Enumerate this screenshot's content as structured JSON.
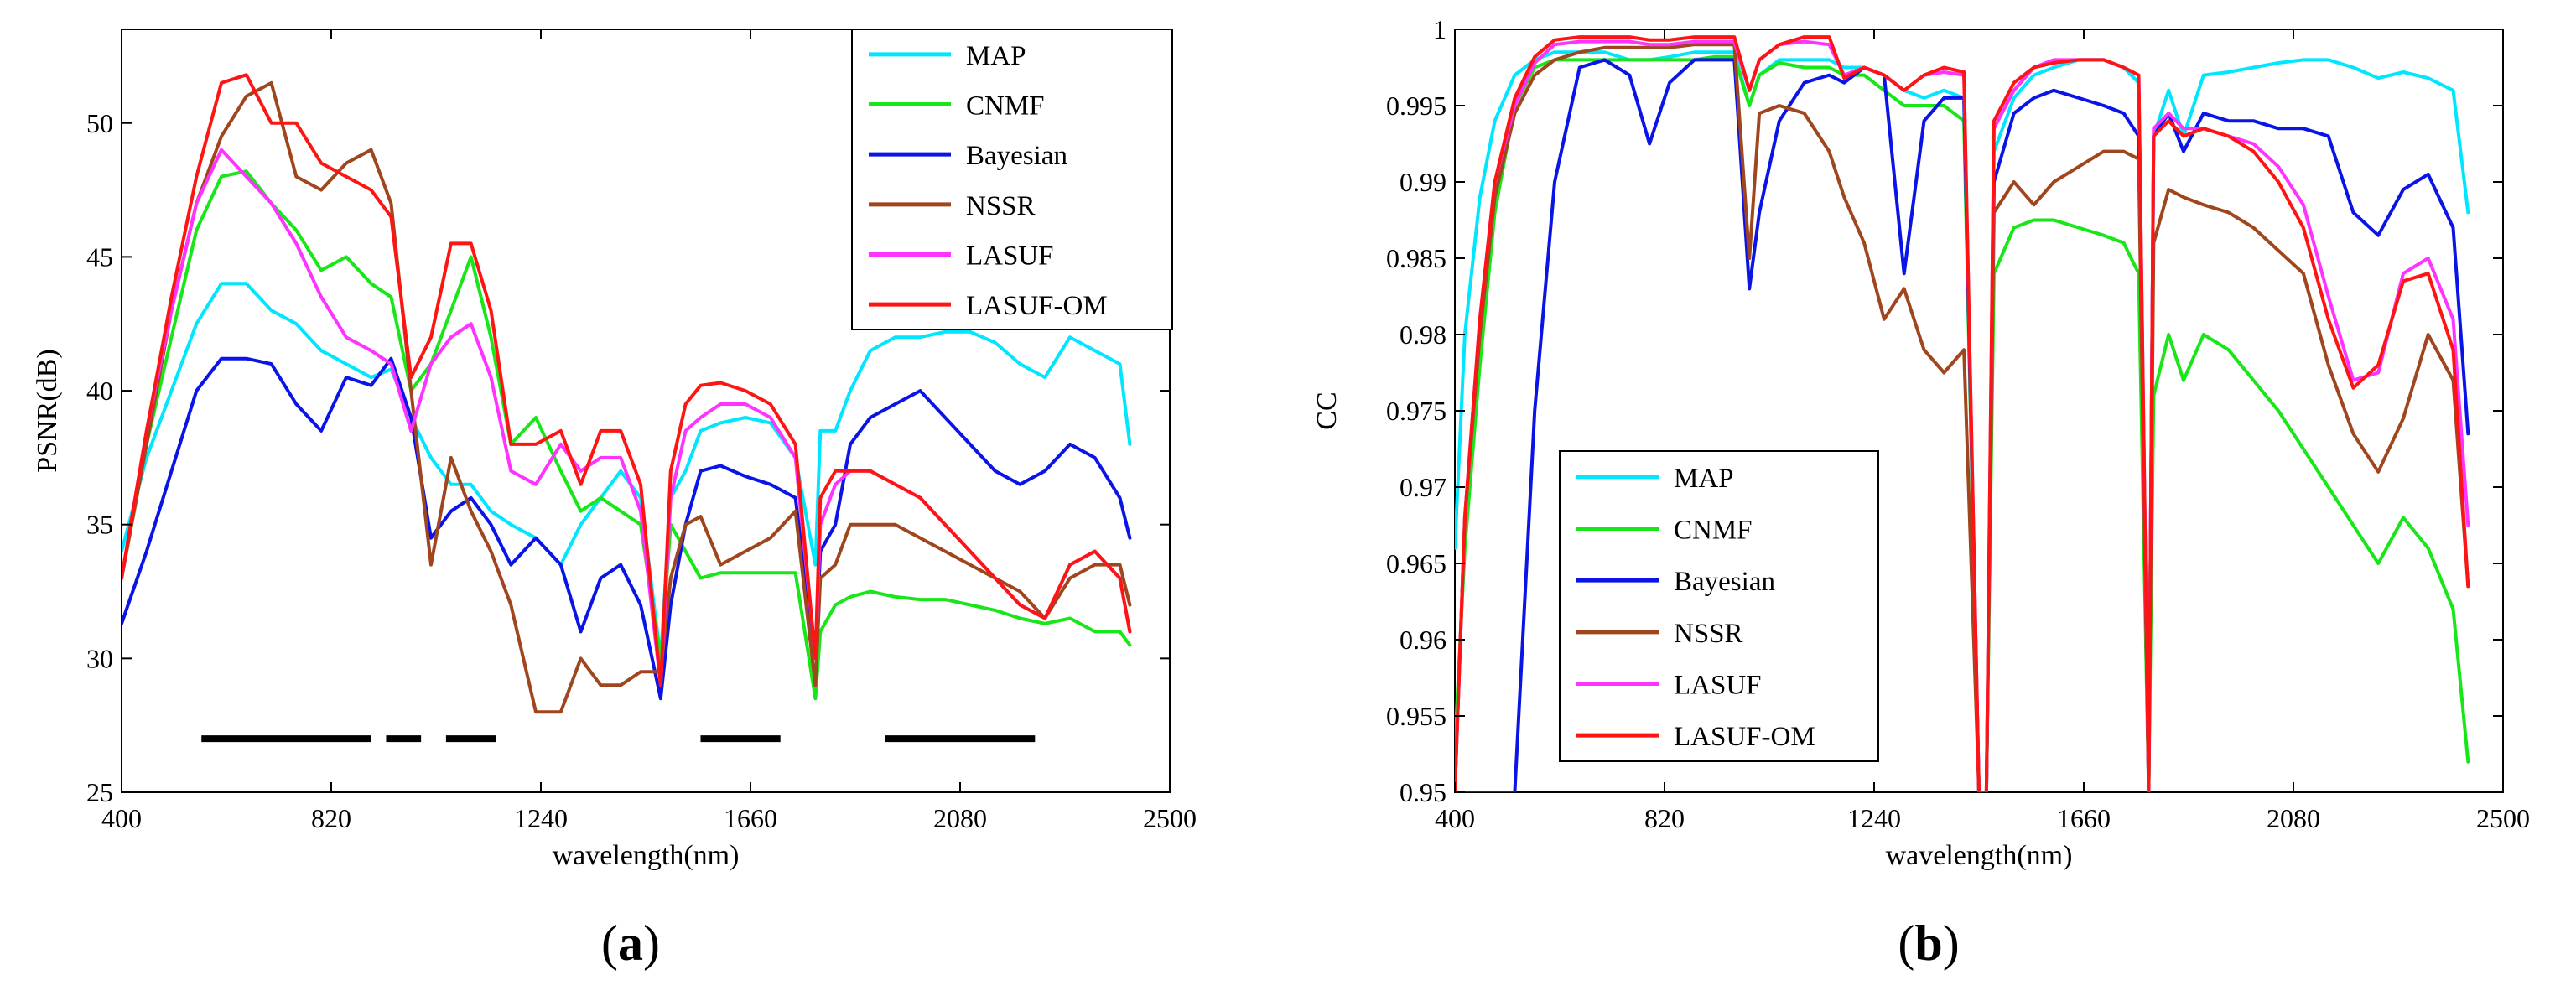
{
  "colors": {
    "MAP": "#00e6ff",
    "CNMF": "#19e619",
    "Bayesian": "#0a14e6",
    "NSSR": "#a0461e",
    "LASUF": "#ff33ff",
    "LASUF-OM": "#ff1414"
  },
  "chart_data": [
    {
      "type": "line",
      "panel": "a",
      "caption_prefix": "(",
      "caption_letter": "a",
      "caption_suffix": ")",
      "xlabel": "wavelength(nm)",
      "ylabel": "PSNR(dB)",
      "xlim": [
        400,
        2500
      ],
      "ylim": [
        25,
        53.5
      ],
      "xticks": [
        400,
        820,
        1240,
        1660,
        2080,
        2500
      ],
      "yticks": [
        25,
        30,
        35,
        40,
        45,
        50
      ],
      "legend": [
        "MAP",
        "CNMF",
        "Bayesian",
        "NSSR",
        "LASUF",
        "LASUF-OM"
      ],
      "legend_position": "top-right",
      "bad_band_segments": [
        [
          560,
          900
        ],
        [
          930,
          1000
        ],
        [
          1050,
          1150
        ],
        [
          1560,
          1720
        ],
        [
          1930,
          2230
        ]
      ],
      "bad_band_level": 27,
      "x": [
        400,
        450,
        500,
        550,
        600,
        650,
        700,
        750,
        800,
        850,
        900,
        940,
        980,
        1020,
        1060,
        1100,
        1140,
        1180,
        1230,
        1280,
        1320,
        1360,
        1400,
        1440,
        1480,
        1500,
        1530,
        1560,
        1600,
        1650,
        1700,
        1750,
        1790,
        1800,
        1830,
        1860,
        1900,
        1950,
        2000,
        2050,
        2100,
        2150,
        2200,
        2250,
        2300,
        2350,
        2400,
        2420
      ],
      "series": [
        {
          "name": "MAP",
          "values": [
            34,
            37.5,
            40,
            42.5,
            44,
            44,
            43,
            42.5,
            41.5,
            41,
            40.5,
            40.8,
            39,
            37.5,
            36.5,
            36.5,
            35.5,
            35,
            34.5,
            33.5,
            35,
            36,
            37,
            36,
            30,
            36,
            37,
            38.5,
            38.8,
            39,
            38.8,
            37.5,
            33.5,
            38.5,
            38.5,
            40,
            41.5,
            42,
            42,
            42.2,
            42.2,
            41.8,
            41,
            40.5,
            42,
            41.5,
            41,
            38
          ]
        },
        {
          "name": "CNMF",
          "values": [
            33,
            38,
            42,
            46,
            48,
            48.2,
            47,
            46,
            44.5,
            45,
            44,
            43.5,
            40,
            41,
            43,
            45,
            42,
            38,
            39,
            37,
            35.5,
            36,
            35.5,
            35,
            30,
            35,
            34,
            33,
            33.2,
            33.2,
            33.2,
            33.2,
            28.5,
            31,
            32,
            32.3,
            32.5,
            32.3,
            32.2,
            32.2,
            32,
            31.8,
            31.5,
            31.3,
            31.5,
            31,
            31,
            30.5
          ]
        },
        {
          "name": "Bayesian",
          "values": [
            31.3,
            34,
            37,
            40,
            41.2,
            41.2,
            41,
            39.5,
            38.5,
            40.5,
            40.2,
            41.2,
            39,
            34.5,
            35.5,
            36,
            35,
            33.5,
            34.5,
            33.5,
            31,
            33,
            33.5,
            32,
            28.5,
            32,
            35,
            37,
            37.2,
            36.8,
            36.5,
            36,
            30,
            34,
            35,
            38,
            39,
            39.5,
            40,
            39,
            38,
            37,
            36.5,
            37,
            38,
            37.5,
            36,
            34.5
          ]
        },
        {
          "name": "NSSR",
          "values": [
            33,
            38,
            43,
            47,
            49.5,
            51,
            51.5,
            48,
            47.5,
            48.5,
            49,
            47,
            40,
            33.5,
            37.5,
            35.5,
            34,
            32,
            28,
            28,
            30,
            29,
            29,
            29.5,
            29.5,
            33,
            35,
            35.3,
            33.5,
            34,
            34.5,
            35.5,
            29,
            33,
            33.5,
            35,
            35,
            35,
            34.5,
            34,
            33.5,
            33,
            32.5,
            31.5,
            33,
            33.5,
            33.5,
            32
          ]
        },
        {
          "name": "LASUF",
          "values": [
            33,
            38.5,
            43,
            47,
            49,
            48,
            47,
            45.5,
            43.5,
            42,
            41.5,
            41,
            38.5,
            41,
            42,
            42.5,
            40.5,
            37,
            36.5,
            38,
            37,
            37.5,
            37.5,
            35.5,
            29,
            36,
            38.5,
            39,
            39.5,
            39.5,
            39,
            37.5,
            30,
            35,
            36.5,
            37,
            37,
            36.5,
            36,
            35,
            34,
            33,
            32,
            31.5,
            33.5,
            34,
            33,
            31
          ]
        },
        {
          "name": "LASUF-OM",
          "values": [
            33,
            38.5,
            43.5,
            48,
            51.5,
            51.8,
            50,
            50,
            48.5,
            48,
            47.5,
            46.5,
            40.5,
            42,
            45.5,
            45.5,
            43,
            38,
            38,
            38.5,
            36.5,
            38.5,
            38.5,
            36.5,
            29,
            37,
            39.5,
            40.2,
            40.3,
            40,
            39.5,
            38,
            30,
            36,
            37,
            37,
            37,
            36.5,
            36,
            35,
            34,
            33,
            32,
            31.5,
            33.5,
            34,
            33,
            31
          ]
        }
      ]
    },
    {
      "type": "line",
      "panel": "b",
      "caption_prefix": "(",
      "caption_letter": "b",
      "caption_suffix": ")",
      "xlabel": "wavelength(nm)",
      "ylabel": "CC",
      "xlim": [
        400,
        2500
      ],
      "ylim": [
        0.95,
        1.0
      ],
      "xticks": [
        400,
        820,
        1240,
        1660,
        2080,
        2500
      ],
      "yticks": [
        0.95,
        0.955,
        0.96,
        0.965,
        0.97,
        0.975,
        0.98,
        0.985,
        0.99,
        0.995,
        1
      ],
      "ytick_labels": [
        "0.95",
        "0.955",
        "0.96",
        "0.965",
        "0.97",
        "0.975",
        "0.98",
        "0.985",
        "0.99",
        "0.995",
        "1"
      ],
      "legend": [
        "MAP",
        "CNMF",
        "Bayesian",
        "NSSR",
        "LASUF",
        "LASUF-OM"
      ],
      "legend_position": "bottom-left",
      "x": [
        400,
        420,
        450,
        480,
        520,
        560,
        600,
        650,
        700,
        750,
        790,
        830,
        880,
        920,
        960,
        990,
        1010,
        1050,
        1100,
        1150,
        1180,
        1220,
        1260,
        1300,
        1340,
        1380,
        1420,
        1450,
        1465,
        1480,
        1520,
        1560,
        1600,
        1650,
        1700,
        1740,
        1770,
        1790,
        1800,
        1830,
        1860,
        1900,
        1950,
        2000,
        2050,
        2100,
        2150,
        2200,
        2250,
        2300,
        2350,
        2400,
        2430
      ],
      "series": [
        {
          "name": "MAP",
          "values": [
            0.966,
            0.98,
            0.989,
            0.994,
            0.997,
            0.998,
            0.9985,
            0.9985,
            0.9985,
            0.998,
            0.998,
            0.9982,
            0.9985,
            0.9985,
            0.9985,
            0.995,
            0.997,
            0.998,
            0.998,
            0.998,
            0.9975,
            0.9975,
            0.997,
            0.996,
            0.9955,
            0.996,
            0.9955,
            0.95,
            0.95,
            0.992,
            0.9955,
            0.997,
            0.9975,
            0.998,
            0.998,
            0.9975,
            0.9965,
            0.95,
            0.993,
            0.996,
            0.993,
            0.997,
            0.9972,
            0.9975,
            0.9978,
            0.998,
            0.998,
            0.9975,
            0.9968,
            0.9972,
            0.9968,
            0.996,
            0.988
          ]
        },
        {
          "name": "CNMF",
          "values": [
            0.953,
            0.966,
            0.978,
            0.988,
            0.995,
            0.9975,
            0.998,
            0.998,
            0.998,
            0.998,
            0.998,
            0.998,
            0.998,
            0.9982,
            0.9982,
            0.995,
            0.997,
            0.9978,
            0.9975,
            0.9975,
            0.997,
            0.997,
            0.996,
            0.995,
            0.995,
            0.995,
            0.994,
            0.95,
            0.95,
            0.984,
            0.987,
            0.9875,
            0.9875,
            0.987,
            0.9865,
            0.986,
            0.984,
            0.95,
            0.976,
            0.98,
            0.977,
            0.98,
            0.979,
            0.977,
            0.975,
            0.9725,
            0.97,
            0.9675,
            0.965,
            0.968,
            0.966,
            0.962,
            0.952
          ]
        },
        {
          "name": "Bayesian",
          "values": [
            0.95,
            0.95,
            0.95,
            0.95,
            0.95,
            0.975,
            0.99,
            0.9975,
            0.998,
            0.997,
            0.9925,
            0.9965,
            0.998,
            0.998,
            0.998,
            0.983,
            0.988,
            0.994,
            0.9965,
            0.997,
            0.9965,
            0.9975,
            0.997,
            0.984,
            0.994,
            0.9955,
            0.9955,
            0.95,
            0.95,
            0.99,
            0.9945,
            0.9955,
            0.996,
            0.9955,
            0.995,
            0.9945,
            0.993,
            0.95,
            0.993,
            0.9945,
            0.992,
            0.9945,
            0.994,
            0.994,
            0.9935,
            0.9935,
            0.993,
            0.988,
            0.9865,
            0.9895,
            0.9905,
            0.987,
            0.9735
          ]
        },
        {
          "name": "NSSR",
          "values": [
            0.95,
            0.968,
            0.98,
            0.989,
            0.9945,
            0.997,
            0.998,
            0.9985,
            0.9988,
            0.9988,
            0.9988,
            0.9988,
            0.999,
            0.999,
            0.999,
            0.985,
            0.9945,
            0.995,
            0.9945,
            0.992,
            0.989,
            0.986,
            0.981,
            0.983,
            0.979,
            0.9775,
            0.979,
            0.95,
            0.95,
            0.988,
            0.99,
            0.9885,
            0.99,
            0.991,
            0.992,
            0.992,
            0.9915,
            0.95,
            0.986,
            0.9895,
            0.989,
            0.9885,
            0.988,
            0.987,
            0.9855,
            0.984,
            0.978,
            0.9735,
            0.971,
            0.9745,
            0.98,
            0.977,
            0.9635
          ]
        },
        {
          "name": "LASUF",
          "values": [
            0.95,
            0.968,
            0.981,
            0.99,
            0.995,
            0.9978,
            0.999,
            0.9992,
            0.9992,
            0.9992,
            0.999,
            0.999,
            0.9992,
            0.9992,
            0.9992,
            0.996,
            0.998,
            0.999,
            0.9992,
            0.999,
            0.997,
            0.9975,
            0.997,
            0.996,
            0.997,
            0.9972,
            0.997,
            0.95,
            0.95,
            0.9935,
            0.996,
            0.9975,
            0.998,
            0.998,
            0.998,
            0.9975,
            0.997,
            0.95,
            0.9935,
            0.9945,
            0.9935,
            0.9935,
            0.993,
            0.9925,
            0.991,
            0.9885,
            0.9825,
            0.977,
            0.9775,
            0.984,
            0.985,
            0.981,
            0.9675
          ]
        },
        {
          "name": "LASUF-OM",
          "values": [
            0.95,
            0.968,
            0.981,
            0.99,
            0.9955,
            0.9982,
            0.9993,
            0.9995,
            0.9995,
            0.9995,
            0.9993,
            0.9993,
            0.9995,
            0.9995,
            0.9995,
            0.996,
            0.998,
            0.999,
            0.9995,
            0.9995,
            0.9968,
            0.9975,
            0.997,
            0.996,
            0.997,
            0.9975,
            0.9972,
            0.95,
            0.95,
            0.994,
            0.9965,
            0.9975,
            0.9978,
            0.998,
            0.998,
            0.9975,
            0.997,
            0.95,
            0.993,
            0.994,
            0.993,
            0.9935,
            0.993,
            0.992,
            0.99,
            0.987,
            0.981,
            0.9765,
            0.978,
            0.9835,
            0.984,
            0.979,
            0.9635
          ]
        }
      ]
    }
  ]
}
